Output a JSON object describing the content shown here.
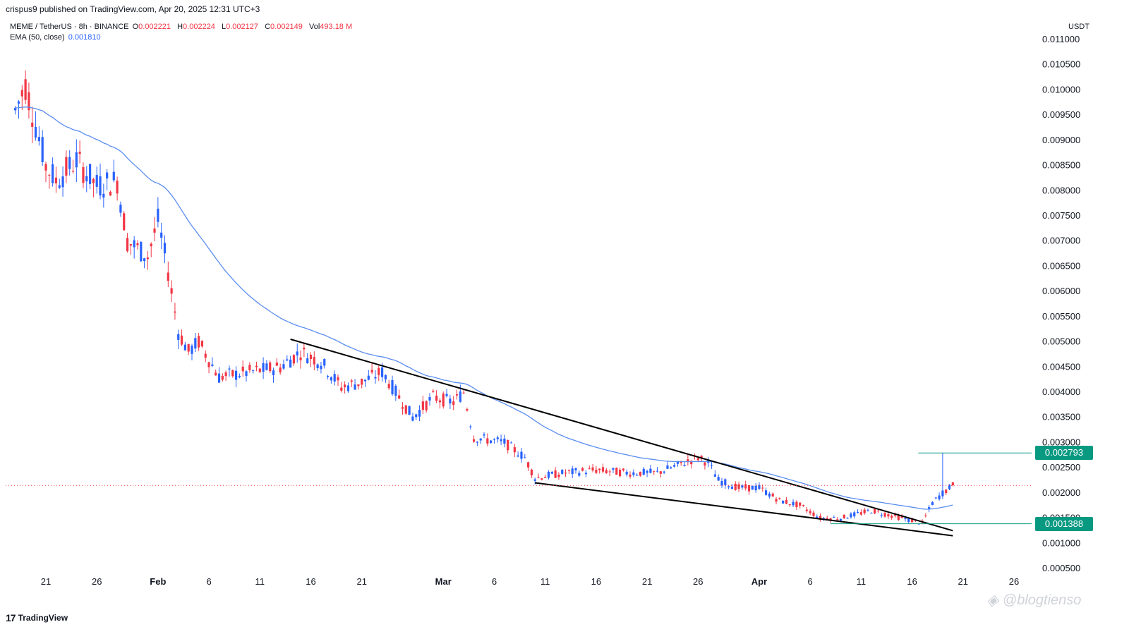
{
  "header": {
    "published_text": "crispus9 published on TradingView.com, Apr 20, 2025 12:31 UTC+3"
  },
  "legend": {
    "symbol": "MEME / TetherUS · 8h · BINANCE",
    "open_label": "O",
    "open": "0.002221",
    "high_label": "H",
    "high": "0.002224",
    "low_label": "L",
    "low": "0.002127",
    "close_label": "C",
    "close": "0.002149",
    "vol_label": "Vol",
    "volume": "493.18 M",
    "ema_label": "EMA (50, close)",
    "ema_value": "0.001810"
  },
  "axis": {
    "currency": "USDT",
    "y_ticks": [
      "0.011000",
      "0.010500",
      "0.010000",
      "0.009500",
      "0.009000",
      "0.008500",
      "0.008000",
      "0.007500",
      "0.007000",
      "0.006500",
      "0.006000",
      "0.005500",
      "0.005000",
      "0.004500",
      "0.004000",
      "0.003500",
      "0.003000",
      "0.002500",
      "0.002000",
      "0.001500",
      "0.001000",
      "0.000500"
    ],
    "x_ticks": [
      "21",
      "26",
      "Feb",
      "6",
      "11",
      "16",
      "21",
      "Mar",
      "6",
      "11",
      "16",
      "21",
      "26",
      "Apr",
      "6",
      "11",
      "16",
      "21",
      "26"
    ],
    "x_bold": [
      "Feb",
      "Mar",
      "Apr"
    ]
  },
  "price_labels": {
    "upper": "0.002793",
    "lower": "0.001388"
  },
  "branding": {
    "logo_text": "TradingView",
    "logo_mark": "17",
    "watermark": "@blogtienso"
  },
  "colors": {
    "up": "#2962ff",
    "down": "#f23645",
    "ema": "#5b8def",
    "trendline": "#000000",
    "level": "#089981",
    "last_price_line": "#f23645"
  },
  "chart_data": {
    "type": "candlestick",
    "title": "MEME / TetherUS · 8h · BINANCE",
    "xlabel": "",
    "ylabel": "USDT",
    "ylim": [
      0.0005,
      0.0112
    ],
    "x_range": [
      "2025-01-18",
      "2025-04-29"
    ],
    "anchors": [
      {
        "date": "2025-01-18",
        "close": 0.0096
      },
      {
        "date": "2025-01-19",
        "close": 0.0101
      },
      {
        "date": "2025-01-20",
        "close": 0.0093
      },
      {
        "date": "2025-01-21",
        "close": 0.0085
      },
      {
        "date": "2025-01-22",
        "close": 0.0082
      },
      {
        "date": "2025-01-24",
        "close": 0.0086
      },
      {
        "date": "2025-01-26",
        "close": 0.0081
      },
      {
        "date": "2025-01-28",
        "close": 0.0082
      },
      {
        "date": "2025-01-29",
        "close": 0.007
      },
      {
        "date": "2025-01-31",
        "close": 0.0067
      },
      {
        "date": "2025-02-01",
        "close": 0.0074
      },
      {
        "date": "2025-02-02",
        "close": 0.0064
      },
      {
        "date": "2025-02-03",
        "close": 0.0052
      },
      {
        "date": "2025-02-04",
        "close": 0.0048
      },
      {
        "date": "2025-02-05",
        "close": 0.005
      },
      {
        "date": "2025-02-07",
        "close": 0.0043
      },
      {
        "date": "2025-02-10",
        "close": 0.0044
      },
      {
        "date": "2025-02-13",
        "close": 0.0045
      },
      {
        "date": "2025-02-15",
        "close": 0.0048
      },
      {
        "date": "2025-02-17",
        "close": 0.0046
      },
      {
        "date": "2025-02-19",
        "close": 0.0041
      },
      {
        "date": "2025-02-21",
        "close": 0.0042
      },
      {
        "date": "2025-02-23",
        "close": 0.0044
      },
      {
        "date": "2025-02-25",
        "close": 0.0038
      },
      {
        "date": "2025-02-26",
        "close": 0.0035
      },
      {
        "date": "2025-02-28",
        "close": 0.0039
      },
      {
        "date": "2025-03-02",
        "close": 0.0038
      },
      {
        "date": "2025-03-03",
        "close": 0.004
      },
      {
        "date": "2025-03-04",
        "close": 0.0031
      },
      {
        "date": "2025-03-07",
        "close": 0.003
      },
      {
        "date": "2025-03-09",
        "close": 0.0027
      },
      {
        "date": "2025-03-10",
        "close": 0.0023
      },
      {
        "date": "2025-03-13",
        "close": 0.0024
      },
      {
        "date": "2025-03-16",
        "close": 0.00245
      },
      {
        "date": "2025-03-19",
        "close": 0.0024
      },
      {
        "date": "2025-03-22",
        "close": 0.0024
      },
      {
        "date": "2025-03-24",
        "close": 0.00255
      },
      {
        "date": "2025-03-26",
        "close": 0.0027
      },
      {
        "date": "2025-03-27",
        "close": 0.0026
      },
      {
        "date": "2025-03-28",
        "close": 0.00225
      },
      {
        "date": "2025-03-30",
        "close": 0.0021
      },
      {
        "date": "2025-04-01",
        "close": 0.0021
      },
      {
        "date": "2025-04-03",
        "close": 0.00185
      },
      {
        "date": "2025-04-05",
        "close": 0.00175
      },
      {
        "date": "2025-04-07",
        "close": 0.0015
      },
      {
        "date": "2025-04-09",
        "close": 0.0015
      },
      {
        "date": "2025-04-12",
        "close": 0.00165
      },
      {
        "date": "2025-04-14",
        "close": 0.00155
      },
      {
        "date": "2025-04-16",
        "close": 0.00145
      },
      {
        "date": "2025-04-17",
        "close": 0.0014
      },
      {
        "date": "2025-04-18",
        "close": 0.0018
      },
      {
        "date": "2025-04-19",
        "close": 0.002
      },
      {
        "date": "2025-04-20",
        "close": 0.00215
      }
    ],
    "spike": {
      "date": "2025-04-19",
      "high": 0.002793
    },
    "ema_period": 50,
    "ema_last": 0.00181,
    "trendlines": [
      {
        "x1": "2025-02-14",
        "y1": 0.00505,
        "x2": "2025-04-20",
        "y2": 0.00125
      },
      {
        "x1": "2025-03-10",
        "y1": 0.0022,
        "x2": "2025-04-20",
        "y2": 0.00115
      }
    ],
    "horizontal_levels": [
      0.002793,
      0.001388
    ],
    "last_price": 0.002149
  }
}
